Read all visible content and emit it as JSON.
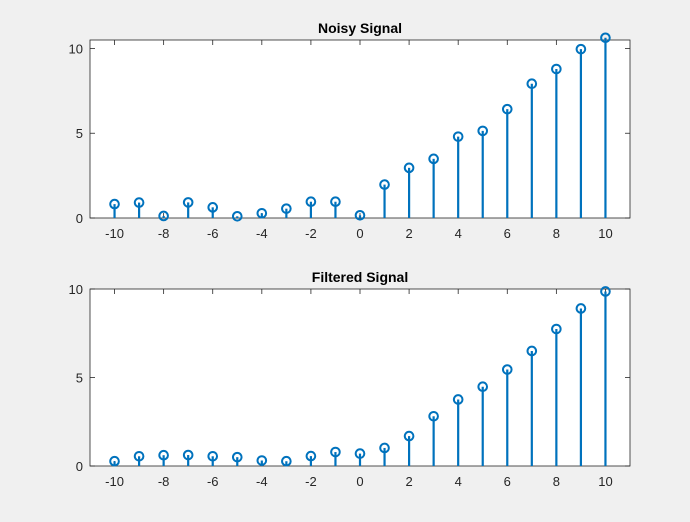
{
  "colors": {
    "stem": "#0072BD",
    "axes": "#262626",
    "background": "#f0f0f0",
    "plot_background": "#ffffff"
  },
  "chart_data": [
    {
      "type": "stem",
      "title": "Noisy Signal",
      "x": [
        -10,
        -9,
        -8,
        -7,
        -6,
        -5,
        -4,
        -3,
        -2,
        -1,
        0,
        1,
        2,
        3,
        4,
        5,
        6,
        7,
        8,
        9,
        10
      ],
      "y": [
        0.82,
        0.91,
        0.12,
        0.92,
        0.63,
        0.1,
        0.28,
        0.55,
        0.96,
        0.96,
        0.16,
        1.97,
        2.96,
        3.49,
        4.8,
        5.14,
        6.42,
        7.92,
        8.79,
        9.96,
        10.63
      ],
      "xlim": [
        -11,
        11
      ],
      "ylim": [
        0,
        10.5
      ],
      "xticks": [
        -10,
        -8,
        -6,
        -4,
        -2,
        0,
        2,
        4,
        6,
        8,
        10
      ],
      "yticks": [
        0,
        5,
        10
      ],
      "xlabel": "",
      "ylabel": "",
      "grid": false
    },
    {
      "type": "stem",
      "title": "Filtered Signal",
      "x": [
        -10,
        -9,
        -8,
        -7,
        -6,
        -5,
        -4,
        -3,
        -2,
        -1,
        0,
        1,
        2,
        3,
        4,
        5,
        6,
        7,
        8,
        9,
        10
      ],
      "y": [
        0.27,
        0.55,
        0.61,
        0.62,
        0.55,
        0.5,
        0.31,
        0.27,
        0.56,
        0.79,
        0.7,
        1.02,
        1.69,
        2.81,
        3.76,
        4.48,
        5.45,
        6.5,
        7.74,
        8.9,
        9.86
      ],
      "xlim": [
        -11,
        11
      ],
      "ylim": [
        0,
        10
      ],
      "xticks": [
        -10,
        -8,
        -6,
        -4,
        -2,
        0,
        2,
        4,
        6,
        8,
        10
      ],
      "yticks": [
        0,
        5,
        10
      ],
      "xlabel": "",
      "ylabel": "",
      "grid": false
    }
  ]
}
